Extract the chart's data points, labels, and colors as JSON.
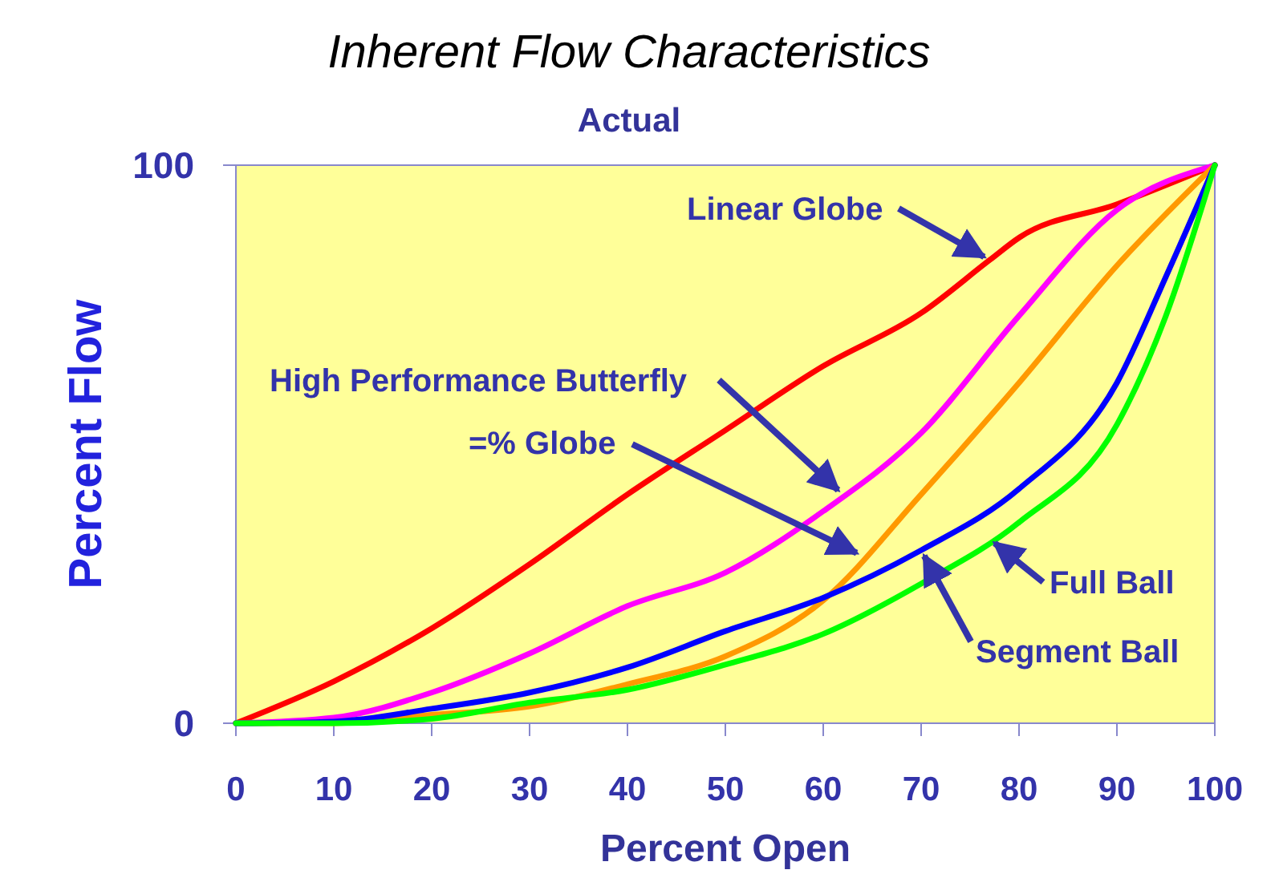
{
  "chart_data": {
    "type": "line",
    "title": "Inherent Flow Characteristics",
    "subtitle": "Actual",
    "xlabel": "Percent Open",
    "ylabel": "Percent Flow",
    "xlim": [
      0,
      100
    ],
    "ylim": [
      0,
      100
    ],
    "xticks": [
      0,
      10,
      20,
      30,
      40,
      50,
      60,
      70,
      80,
      90,
      100
    ],
    "yticks": [
      0,
      100
    ],
    "marker": "none",
    "line_style": "solid",
    "annotations": [
      {
        "text": "Linear Globe",
        "x": 77,
        "y": 83
      },
      {
        "text": "High Performance Butterfly",
        "x": 62,
        "y": 41
      },
      {
        "text": "=% Globe",
        "x": 64,
        "y": 30
      },
      {
        "text": "Segment Ball",
        "x": 70,
        "y": 31
      },
      {
        "text": "Full Ball",
        "x": 77,
        "y": 33
      }
    ],
    "series": [
      {
        "color": "#ff0000",
        "x": [
          0,
          10,
          20,
          30,
          40,
          50,
          60,
          70,
          77,
          80,
          90,
          100
        ],
        "values": [
          0,
          7.5,
          17,
          28.5,
          41,
          52.5,
          64,
          73.5,
          83,
          87,
          93,
          100
        ]
      },
      {
        "color": "#ff00ff",
        "x": [
          0,
          10,
          20,
          30,
          40,
          50,
          60,
          70,
          80,
          90,
          100
        ],
        "values": [
          0,
          1,
          5.5,
          12.5,
          21,
          27,
          38,
          52,
          73,
          92,
          100
        ]
      },
      {
        "color": "#ff9900",
        "x": [
          0,
          10,
          20,
          30,
          40,
          50,
          60,
          70,
          80,
          90,
          100
        ],
        "values": [
          0,
          0,
          1.5,
          3,
          7,
          12,
          22,
          41,
          61,
          82,
          100
        ]
      },
      {
        "color": "#0000ff",
        "x": [
          0,
          10,
          20,
          30,
          40,
          50,
          60,
          70,
          80,
          90,
          95,
          100
        ],
        "values": [
          0,
          0.3,
          2.6,
          5.5,
          10,
          16.5,
          22.5,
          31,
          42,
          61,
          80,
          100
        ]
      },
      {
        "color": "#00ff00",
        "x": [
          0,
          10,
          20,
          30,
          40,
          50,
          60,
          70,
          80,
          90,
          95,
          100
        ],
        "values": [
          0,
          0,
          0.8,
          3.7,
          6,
          10.5,
          16,
          25,
          36,
          53.5,
          73,
          100
        ]
      }
    ]
  }
}
